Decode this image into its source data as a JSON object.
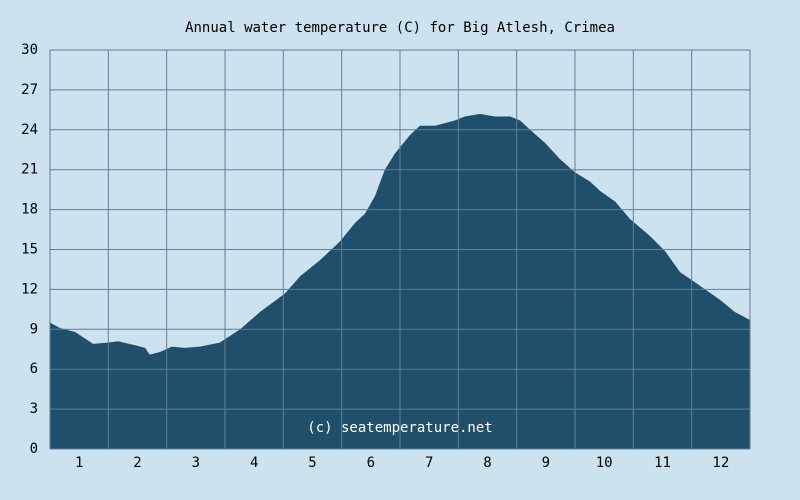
{
  "chart_data": {
    "type": "area",
    "title": "Annual water temperature (C) for Big Atlesh, Crimea",
    "annotation": "(c) seatemperature.net",
    "color": "#1f4f6b",
    "x": [
      0.5,
      0.67,
      0.93,
      1.24,
      1.49,
      1.67,
      1.96,
      2.13,
      2.21,
      2.39,
      2.59,
      2.81,
      3.07,
      3.41,
      3.76,
      4.1,
      4.53,
      4.79,
      5.13,
      5.47,
      5.73,
      5.9,
      6.07,
      6.24,
      6.41,
      6.67,
      6.84,
      7.1,
      7.44,
      7.61,
      7.87,
      8.13,
      8.39,
      8.56,
      8.73,
      8.99,
      9.24,
      9.5,
      9.76,
      9.93,
      10.19,
      10.44,
      10.79,
      11.04,
      11.3,
      11.47,
      11.73,
      11.99,
      12.24,
      12.5
    ],
    "values": [
      9.5,
      9.1,
      8.8,
      7.9,
      8.0,
      8.1,
      7.8,
      7.6,
      7.1,
      7.3,
      7.7,
      7.6,
      7.7,
      8.0,
      9.0,
      10.3,
      11.7,
      13.0,
      14.2,
      15.6,
      17.0,
      17.7,
      19.0,
      21.0,
      22.2,
      23.6,
      24.3,
      24.3,
      24.7,
      25.0,
      25.2,
      25.0,
      25.0,
      24.7,
      24.0,
      23.0,
      21.8,
      20.8,
      20.1,
      19.4,
      18.6,
      17.3,
      16.0,
      14.9,
      13.3,
      12.8,
      12.0,
      11.2,
      10.3,
      9.7
    ],
    "xlim": [
      0.5,
      12.5
    ],
    "xticks": [
      1,
      2,
      3,
      4,
      5,
      6,
      7,
      8,
      9,
      10,
      11,
      12
    ],
    "ylim": [
      0,
      30
    ],
    "yticks": [
      0,
      3,
      6,
      9,
      12,
      15,
      18,
      21,
      24,
      27,
      30
    ],
    "grid": true
  }
}
